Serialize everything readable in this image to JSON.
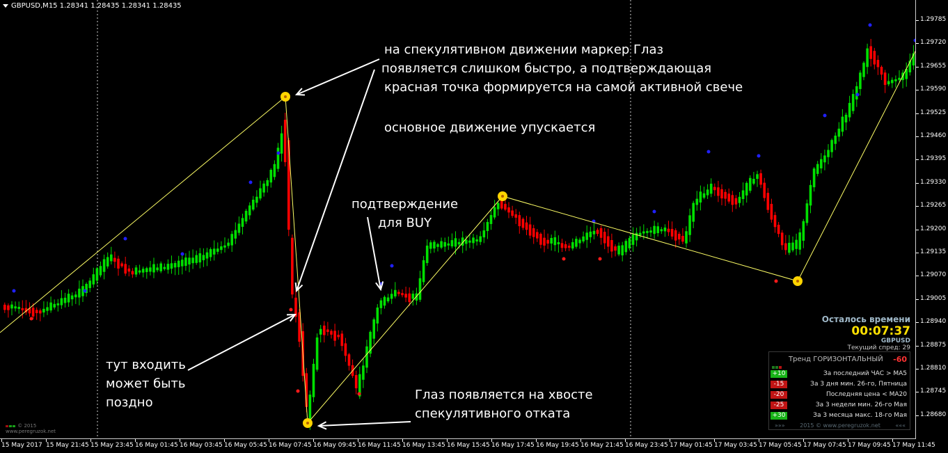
{
  "header": {
    "text": "GBPUSD,M15  1.28341 1.28435 1.28341 1.28435"
  },
  "price_axis": {
    "ticks": [
      "1.29785",
      "1.29720",
      "1.29655",
      "1.29590",
      "1.29525",
      "1.29460",
      "1.29395",
      "1.29330",
      "1.29265",
      "1.29200",
      "1.29135",
      "1.29070",
      "1.29005",
      "1.28940",
      "1.28875",
      "1.28810",
      "1.28745",
      "1.28680"
    ]
  },
  "time_axis": {
    "ticks": [
      "15 May 2017",
      "15 May 21:45",
      "15 May 23:45",
      "16 May 01:45",
      "16 May 03:45",
      "16 May 05:45",
      "16 May 07:45",
      "16 May 09:45",
      "16 May 11:45",
      "16 May 13:45",
      "16 May 15:45",
      "16 May 17:45",
      "16 May 19:45",
      "16 May 21:45",
      "16 May 23:45",
      "17 May 01:45",
      "17 May 03:45",
      "17 May 05:45",
      "17 May 07:45",
      "17 May 09:45",
      "17 May 11:45"
    ]
  },
  "annotations": {
    "a1_line1": "на спекулятивном движении маркер Глаз",
    "a1_line2": "появляется слишком быстро, а подтверждающая",
    "a1_line3": "красная точка формируется на самой активной свече",
    "a2": "основное движение упускается",
    "a3_line1": "подтверждение",
    "a3_line2": "для BUY",
    "a4_line1": "тут входить",
    "a4_line2": "может быть",
    "a4_line3": "поздно",
    "a5_line1": "Глаз появляется на хвосте",
    "a5_line2": "спекулятивного отката"
  },
  "panel": {
    "timer_title": "Осталось времени",
    "timer_value": "00:07:37",
    "symbol": "GBPUSD",
    "spread": "Текущий спред: 29",
    "trend_label": "Тренд ГОРИЗОНТАЛЬНЫЙ",
    "trend_value": "-60",
    "signals": [
      {
        "value": "+10",
        "label": "За последний ЧАС > МА5",
        "color": "#18b418"
      },
      {
        "value": "-15",
        "label": "За 3 дня мин. 26-го, Пятница",
        "color": "#c01414"
      },
      {
        "value": "-20",
        "label": "Последняя цена < МА20",
        "color": "#c01414"
      },
      {
        "value": "-25",
        "label": "За 3 недели мин. 26-го Мая",
        "color": "#c01414"
      },
      {
        "value": "+30",
        "label": "За 3 месяца макс. 18-го Мая",
        "color": "#18b418"
      }
    ],
    "footer_left": "»»»",
    "footer_mid": "2015  ©  www.peregruzok.net",
    "footer_right": "«««"
  },
  "logo": {
    "line1": "© 2015",
    "line2": "www.peregruzok.net"
  },
  "colors": {
    "bull": "#00e000",
    "bear": "#ff0000",
    "zigzag": "#ffff66",
    "eye_marker": "#ffd400",
    "top_dot": "#2020ff",
    "bottom_dot": "#ff1a1a",
    "background": "#000000"
  }
}
